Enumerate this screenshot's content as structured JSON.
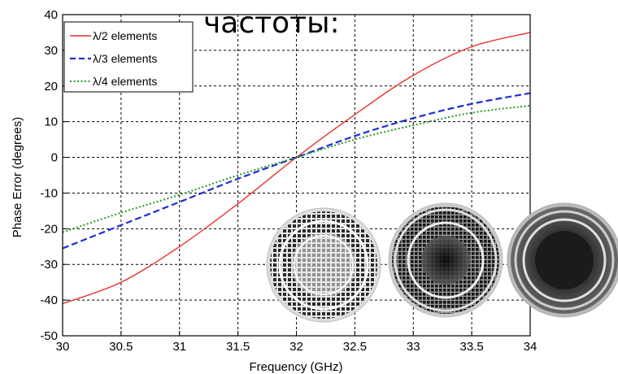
{
  "overlay_text": "частоты:",
  "chart_data": {
    "type": "line",
    "xlabel": "Frequency (GHz)",
    "ylabel": "Phase Error (degrees)",
    "xlim": [
      30,
      34
    ],
    "ylim": [
      -50,
      40
    ],
    "xticks": [
      "30",
      "30.5",
      "31",
      "31.5",
      "32",
      "32.5",
      "33",
      "33.5",
      "34"
    ],
    "yticks": [
      "40",
      "30",
      "20",
      "10",
      "0",
      "-10",
      "-20",
      "-30",
      "-40",
      "-50"
    ],
    "grid": true,
    "legend_position": "top-left",
    "x": [
      30,
      30.5,
      31,
      31.5,
      32,
      32.5,
      33,
      33.5,
      34
    ],
    "series": [
      {
        "name": "λ/2 elements",
        "color": "#e8322e",
        "dash": "solid",
        "values": [
          -41,
          -35,
          -25,
          -13,
          0,
          12,
          23,
          31,
          35
        ]
      },
      {
        "name": "λ/3 elements",
        "color": "#1c2ed8",
        "dash": "dashed",
        "values": [
          -25.5,
          -19,
          -12.5,
          -6,
          0,
          6,
          11,
          15,
          18
        ]
      },
      {
        "name": "λ/4 elements",
        "color": "#2a9a28",
        "dash": "dotted",
        "values": [
          -21,
          -15.5,
          -10.5,
          -5,
          0,
          5,
          9,
          12.5,
          14.5
        ]
      }
    ],
    "insets": [
      {
        "name": "lambda-2-array-pattern"
      },
      {
        "name": "lambda-3-array-pattern"
      },
      {
        "name": "lambda-4-array-pattern"
      }
    ]
  }
}
